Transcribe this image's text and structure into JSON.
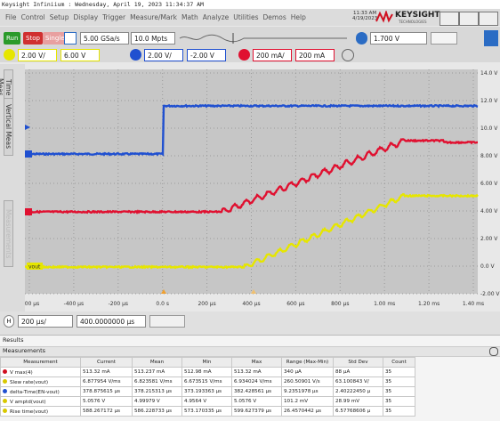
{
  "title_bar": "Keysight Infiniium : Wednesday, April 19, 2023 11:34:37 AM",
  "menu": [
    "File",
    "Control",
    "Setup",
    "Display",
    "Trigger",
    "Measure/Mark",
    "Math",
    "Analyze",
    "Utilities",
    "Demos",
    "Help"
  ],
  "clock": {
    "time": "11:33 AM",
    "date": "4/19/2023"
  },
  "logo": {
    "name": "KEYSIGHT",
    "sub": "TECHNOLOGIES"
  },
  "toolbar": {
    "run": "Run",
    "stop": "Stop",
    "single": "Single",
    "sample_rate": "5.00 GSa/s",
    "memory": "10.0 Mpts",
    "trigger_level": "1.700 V"
  },
  "channels": [
    {
      "scale": "2.00 V/",
      "offset": "6.00 V",
      "color": "#e6e600"
    },
    {
      "scale": "2.00 V/",
      "offset": "-2.00 V",
      "color": "#2050d0"
    },
    {
      "scale": "200 mA/",
      "offset": "200 mA",
      "color": "#e01030"
    }
  ],
  "side_tabs": [
    "Time Meas",
    "Vertical Meas",
    "Measurements"
  ],
  "plot": {
    "y_labels": [
      "14.0 V",
      "12.0 V",
      "10.0 V",
      "8.00 V",
      "6.00 V",
      "4.00 V",
      "2.00 V",
      "0.0 V",
      "-2.00 V"
    ],
    "x_labels": [
      "-600 µs",
      "-400 µs",
      "-200 µs",
      "0.0 s",
      "200 µs",
      "400 µs",
      "600 µs",
      "800 µs",
      "1.00 ms",
      "1.20 ms",
      "1.40 ms"
    ],
    "trace_label": "vout"
  },
  "timebase": {
    "scale": "200 µs/",
    "position": "400.0000000 µs"
  },
  "results": {
    "title": "Results",
    "tab": "Measurements",
    "header": [
      "Measurement",
      "Current",
      "Mean",
      "Min",
      "Max",
      "Range (Max-Min)",
      "Std Dev",
      "Count"
    ],
    "rows": [
      {
        "color": "#d01020",
        "cells": [
          "V max(4)",
          "513.32 mA",
          "513.237 mA",
          "512.98 mA",
          "513.32 mA",
          "340 µA",
          "88 µA",
          "35"
        ]
      },
      {
        "color": "#d8c800",
        "cells": [
          "Slew rate(vout)",
          "6.877954 V/ms",
          "6.823581 V/ms",
          "6.673515 V/ms",
          "6.934024 V/ms",
          "260.50901 V/s",
          "63.100843 V/",
          "35"
        ]
      },
      {
        "color": "#2050d0",
        "cells": [
          "delta-Time(EN-vout)",
          "378.875615 µs",
          "378.215313 µs",
          "373.193363 µs",
          "382.428561 µs",
          "9.2351978 µs",
          "2.40222450 µ",
          "35"
        ]
      },
      {
        "color": "#d8c800",
        "cells": [
          "V amptd(vout)",
          "5.0576 V",
          "4.99979 V",
          "4.9564 V",
          "5.0576 V",
          "101.2 mV",
          "28.99 mV",
          "35"
        ]
      },
      {
        "color": "#d8c800",
        "cells": [
          "Rise time(vout)",
          "588.267172 µs",
          "586.228733 µs",
          "573.170335 µs",
          "599.627379 µs",
          "26.4570442 µs",
          "6.57768606 µ",
          "35"
        ]
      }
    ]
  }
}
